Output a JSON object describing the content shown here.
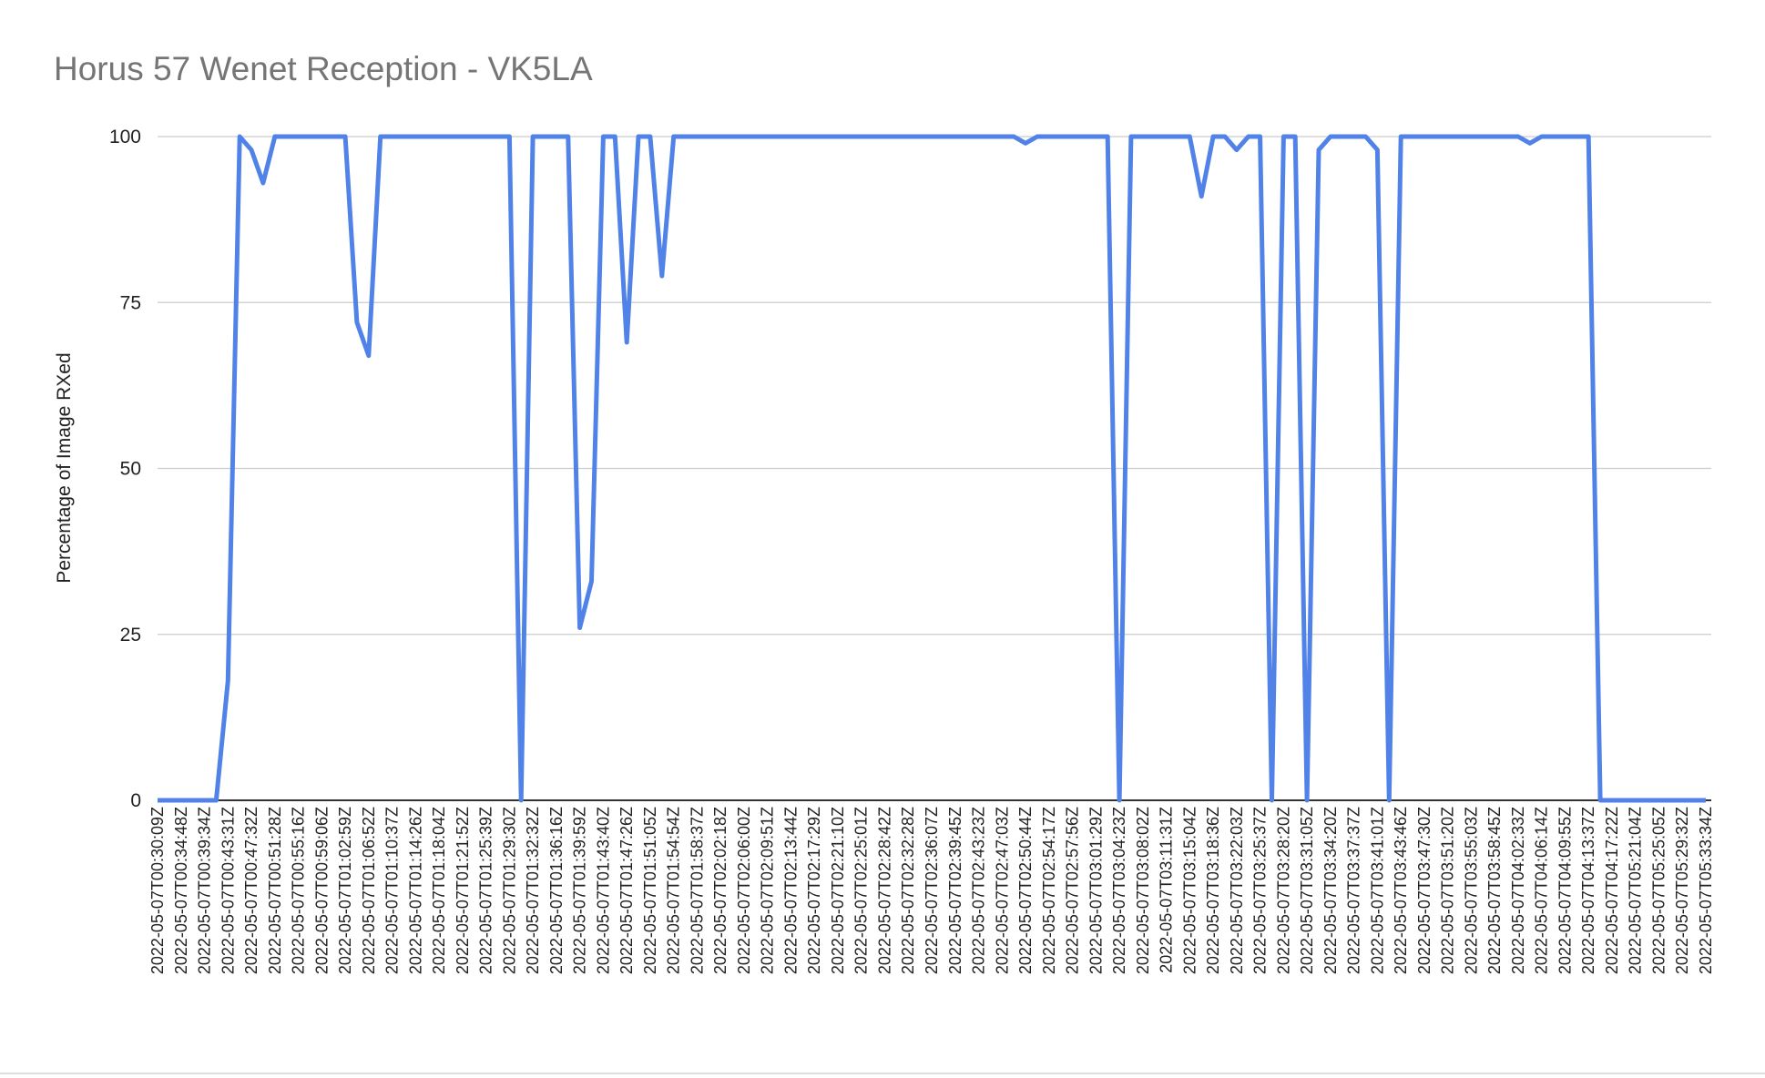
{
  "chart_data": {
    "type": "line",
    "title": "Horus 57 Wenet Reception - VK5LA",
    "y_label": "Percentage of Image RXed",
    "categories": [
      "2022-05-07T00:30:09Z",
      null,
      "2022-05-07T00:34:48Z",
      null,
      "2022-05-07T00:39:34Z",
      null,
      "2022-05-07T00:43:31Z",
      null,
      "2022-05-07T00:47:32Z",
      null,
      "2022-05-07T00:51:28Z",
      null,
      "2022-05-07T00:55:16Z",
      null,
      "2022-05-07T00:59:06Z",
      null,
      "2022-05-07T01:02:59Z",
      null,
      "2022-05-07T01:06:52Z",
      null,
      "2022-05-07T01:10:37Z",
      null,
      "2022-05-07T01:14:26Z",
      null,
      "2022-05-07T01:18:04Z",
      null,
      "2022-05-07T01:21:52Z",
      null,
      "2022-05-07T01:25:39Z",
      null,
      "2022-05-07T01:29:30Z",
      null,
      "2022-05-07T01:32:32Z",
      null,
      "2022-05-07T01:36:16Z",
      null,
      "2022-05-07T01:39:59Z",
      null,
      "2022-05-07T01:43:40Z",
      null,
      "2022-05-07T01:47:26Z",
      null,
      "2022-05-07T01:51:05Z",
      null,
      "2022-05-07T01:54:54Z",
      null,
      "2022-05-07T01:58:37Z",
      null,
      "2022-05-07T02:02:18Z",
      null,
      "2022-05-07T02:06:00Z",
      null,
      "2022-05-07T02:09:51Z",
      null,
      "2022-05-07T02:13:44Z",
      null,
      "2022-05-07T02:17:29Z",
      null,
      "2022-05-07T02:21:10Z",
      null,
      "2022-05-07T02:25:01Z",
      null,
      "2022-05-07T02:28:42Z",
      null,
      "2022-05-07T02:32:28Z",
      null,
      "2022-05-07T02:36:07Z",
      null,
      "2022-05-07T02:39:45Z",
      null,
      "2022-05-07T02:43:23Z",
      null,
      "2022-05-07T02:47:03Z",
      null,
      "2022-05-07T02:50:44Z",
      null,
      "2022-05-07T02:54:17Z",
      null,
      "2022-05-07T02:57:56Z",
      null,
      "2022-05-07T03:01:29Z",
      null,
      "2022-05-07T03:04:23Z",
      null,
      "2022-05-07T03:08:02Z",
      null,
      "2022-05-07T03:11:31Z",
      null,
      "2022-05-07T03:15:04Z",
      null,
      "2022-05-07T03:18:36Z",
      null,
      "2022-05-07T03:22:03Z",
      null,
      "2022-05-07T03:25:37Z",
      null,
      "2022-05-07T03:28:20Z",
      null,
      "2022-05-07T03:31:05Z",
      null,
      "2022-05-07T03:34:20Z",
      null,
      "2022-05-07T03:37:37Z",
      null,
      "2022-05-07T03:41:01Z",
      null,
      "2022-05-07T03:43:46Z",
      null,
      "2022-05-07T03:47:30Z",
      null,
      "2022-05-07T03:51:20Z",
      null,
      "2022-05-07T03:55:03Z",
      null,
      "2022-05-07T03:58:45Z",
      null,
      "2022-05-07T04:02:33Z",
      null,
      "2022-05-07T04:06:14Z",
      null,
      "2022-05-07T04:09:55Z",
      null,
      "2022-05-07T04:13:37Z",
      null,
      "2022-05-07T04:17:22Z",
      null,
      "2022-05-07T05:21:04Z",
      null,
      "2022-05-07T05:25:05Z",
      null,
      "2022-05-07T05:29:32Z",
      null,
      "2022-05-07T05:33:34Z"
    ],
    "values": [
      0,
      0,
      0,
      0,
      0,
      0,
      18,
      100,
      98,
      93,
      100,
      100,
      100,
      100,
      100,
      100,
      100,
      72,
      67,
      100,
      100,
      100,
      100,
      100,
      100,
      100,
      100,
      100,
      100,
      100,
      100,
      0,
      100,
      100,
      100,
      100,
      26,
      33,
      100,
      100,
      69,
      100,
      100,
      79,
      100,
      100,
      100,
      100,
      100,
      100,
      100,
      100,
      100,
      100,
      100,
      100,
      100,
      100,
      100,
      100,
      100,
      100,
      100,
      100,
      100,
      100,
      100,
      100,
      100,
      100,
      100,
      100,
      100,
      100,
      99,
      100,
      100,
      100,
      100,
      100,
      100,
      100,
      0,
      100,
      100,
      100,
      100,
      100,
      100,
      91,
      100,
      100,
      98,
      100,
      100,
      0,
      100,
      100,
      0,
      98,
      100,
      100,
      100,
      100,
      98,
      0,
      100,
      100,
      100,
      100,
      100,
      100,
      100,
      100,
      100,
      100,
      100,
      99,
      100,
      100,
      100,
      100,
      100,
      0,
      0,
      0,
      0,
      0,
      0,
      0,
      0,
      0,
      0
    ],
    "color": "#5082e8",
    "ylim": [
      0,
      100
    ],
    "yticks": [
      0,
      25,
      50,
      75,
      100
    ],
    "grid": true
  }
}
